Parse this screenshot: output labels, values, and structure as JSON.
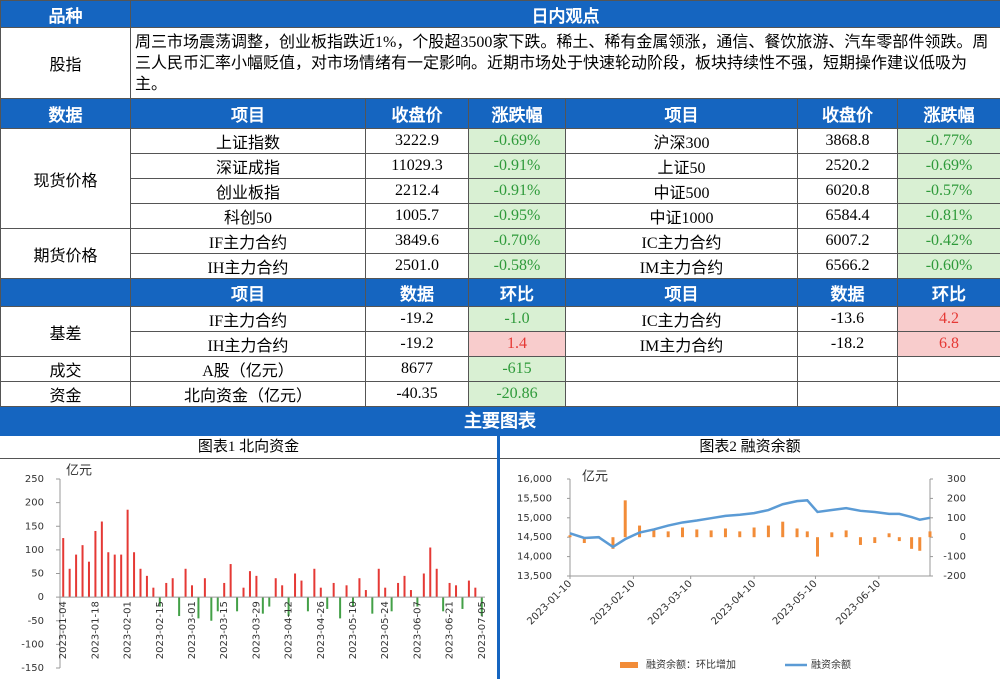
{
  "header": {
    "col1": "品种",
    "col2": "日内观点"
  },
  "index_view": {
    "label": "股指",
    "text": "周三市场震荡调整，创业板指跌近1%，个股超3500家下跌。稀土、稀有金属领涨，通信、餐饮旅游、汽车零部件领跌。周三人民币汇率小幅贬值，对市场情绪有一定影响。近期市场处于快速轮动阶段，板块持续性不强，短期操作建议低吸为主。"
  },
  "price_table": {
    "headers": [
      "数据",
      "项目",
      "收盘价",
      "涨跌幅",
      "项目",
      "收盘价",
      "涨跌幅"
    ],
    "groups": [
      {
        "name": "现货价格",
        "rows": [
          [
            "上证指数",
            "3222.9",
            "-0.69%",
            "沪深300",
            "3868.8",
            "-0.77%"
          ],
          [
            "深证成指",
            "11029.3",
            "-0.91%",
            "上证50",
            "2520.2",
            "-0.69%"
          ],
          [
            "创业板指",
            "2212.4",
            "-0.91%",
            "中证500",
            "6020.8",
            "-0.57%"
          ],
          [
            "科创50",
            "1005.7",
            "-0.95%",
            "中证1000",
            "6584.4",
            "-0.81%"
          ]
        ]
      },
      {
        "name": "期货价格",
        "rows": [
          [
            "IF主力合约",
            "3849.6",
            "-0.70%",
            "IC主力合约",
            "6007.2",
            "-0.42%"
          ],
          [
            "IH主力合约",
            "2501.0",
            "-0.58%",
            "IM主力合约",
            "6566.2",
            "-0.60%"
          ]
        ]
      }
    ]
  },
  "basis_table": {
    "headers": [
      "项目",
      "数据",
      "环比",
      "项目",
      "数据",
      "环比"
    ],
    "groups": [
      {
        "name": "基差",
        "rows": [
          [
            "IF主力合约",
            "-19.2",
            "-1.0",
            "IC主力合约",
            "-13.6",
            "4.2"
          ],
          [
            "IH主力合约",
            "-19.2",
            "1.4",
            "IM主力合约",
            "-18.2",
            "6.8"
          ]
        ]
      },
      {
        "name": "成交",
        "rows": [
          [
            "A股（亿元）",
            "8677",
            "-615"
          ]
        ]
      },
      {
        "name": "资金",
        "rows": [
          [
            "北向资金（亿元）",
            "-40.35",
            "-20.86"
          ]
        ]
      }
    ]
  },
  "section_title": "主要图表",
  "chart_data": [
    {
      "type": "bar",
      "title": "图表1 北向资金",
      "y_label": "亿元",
      "categories": [
        "2023-01-04",
        null,
        null,
        null,
        null,
        "2023-01-18",
        null,
        null,
        null,
        null,
        "2023-02-01",
        null,
        null,
        null,
        null,
        "2023-02-15",
        null,
        null,
        null,
        null,
        "2023-03-01",
        null,
        null,
        null,
        null,
        "2023-03-15",
        null,
        null,
        null,
        null,
        "2023-03-29",
        null,
        null,
        null,
        null,
        "2023-04-12",
        null,
        null,
        null,
        null,
        "2023-04-26",
        null,
        null,
        null,
        null,
        "2023-05-10",
        null,
        null,
        null,
        null,
        "2023-05-24",
        null,
        null,
        null,
        null,
        "2023-06-07",
        null,
        null,
        null,
        null,
        "2023-06-21",
        null,
        null,
        null,
        null,
        "2023-07-05"
      ],
      "values": [
        125,
        60,
        90,
        110,
        75,
        140,
        160,
        95,
        90,
        90,
        185,
        95,
        60,
        45,
        20,
        -20,
        30,
        40,
        -40,
        60,
        25,
        -45,
        40,
        -50,
        -30,
        30,
        70,
        -30,
        20,
        55,
        45,
        -35,
        -20,
        40,
        25,
        -40,
        50,
        35,
        -30,
        60,
        20,
        -25,
        30,
        -45,
        25,
        -20,
        40,
        15,
        -35,
        60,
        20,
        -30,
        30,
        45,
        15,
        -20,
        50,
        105,
        60,
        -30,
        30,
        25,
        -25,
        35,
        20,
        -40
      ],
      "pos_color": "#e53935",
      "neg_color": "#43a047",
      "ylim": [
        -150,
        250
      ],
      "yticks": [
        -150,
        -100,
        -50,
        0,
        50,
        100,
        150,
        200,
        250
      ]
    },
    {
      "type": "combo",
      "title": "图表2 融资余额",
      "y_label": "亿元",
      "x": [
        "2023-01-10",
        "2023-01-17",
        "2023-01-24",
        "2023-01-31",
        "2023-02-06",
        "2023-02-13",
        "2023-02-20",
        "2023-02-27",
        "2023-03-06",
        "2023-03-13",
        "2023-03-20",
        "2023-03-27",
        "2023-04-03",
        "2023-04-10",
        "2023-04-17",
        "2023-04-24",
        "2023-05-01",
        "2023-05-06",
        "2023-05-11",
        "2023-05-18",
        "2023-05-25",
        "2023-06-01",
        "2023-06-08",
        "2023-06-15",
        "2023-06-20",
        "2023-06-26",
        "2023-06-30",
        "2023-07-05"
      ],
      "series": [
        {
          "name": "融资余额：环比增加",
          "color": "#f28c38",
          "kind": "bar",
          "axis": "y2",
          "values": [
            10,
            -30,
            5,
            -60,
            190,
            60,
            40,
            30,
            50,
            40,
            35,
            45,
            30,
            50,
            60,
            80,
            45,
            30,
            -100,
            25,
            35,
            -40,
            -30,
            20,
            -20,
            -60,
            -70,
            30
          ]
        },
        {
          "name": "融资余额",
          "color": "#5b9bd5",
          "kind": "line",
          "values": [
            14600,
            14480,
            14500,
            14250,
            14450,
            14620,
            14700,
            14800,
            14880,
            14930,
            14990,
            15050,
            15080,
            15120,
            15200,
            15350,
            15430,
            15450,
            15150,
            15200,
            15250,
            15180,
            15150,
            15100,
            15100,
            15020,
            14950,
            15000
          ]
        }
      ],
      "xlim": [
        "2023-01-10",
        "2023-07-05"
      ],
      "xticks": [
        "2023-01-10",
        "2023-02-10",
        "2023-03-10",
        "2023-04-10",
        "2023-05-10",
        "2023-06-10"
      ],
      "ylim": [
        13500,
        16000
      ],
      "yticks": [
        {
          "value": 13500,
          "label": "13,500"
        },
        {
          "value": 14000,
          "label": "14,000"
        },
        {
          "value": 14500,
          "label": "14,500"
        },
        {
          "value": 15000,
          "label": "15,000"
        },
        {
          "value": 15500,
          "label": "15,500"
        },
        {
          "value": 16000,
          "label": "16,000"
        }
      ],
      "y2lim": [
        -200,
        300
      ],
      "y2ticks": [
        -200,
        -100,
        0,
        100,
        200,
        300
      ]
    }
  ]
}
